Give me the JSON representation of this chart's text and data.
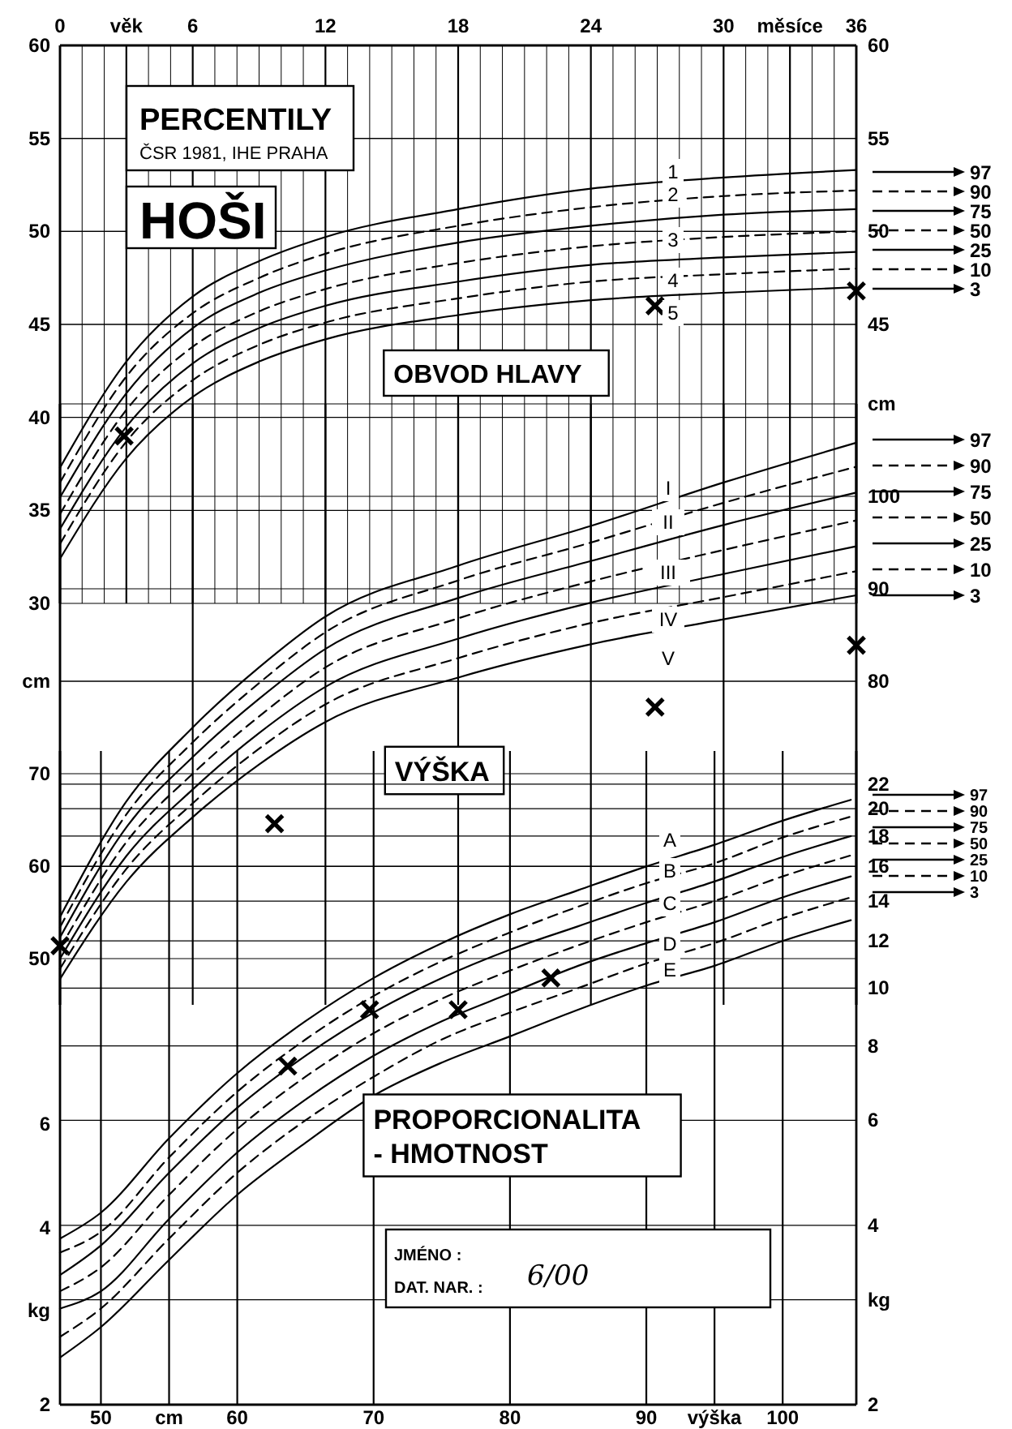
{
  "chart_data": [
    {
      "type": "line",
      "title": "OBVOD HLAVY",
      "x": [
        0,
        3,
        6,
        9,
        12,
        18,
        24,
        30,
        36
      ],
      "xlim": [
        0,
        36
      ],
      "xticks": [
        0,
        {
          "value": 1,
          "label": null
        },
        {
          "value": 2,
          "label": null
        },
        {
          "value": 3,
          "label": "věk"
        },
        {
          "value": 4,
          "label": null
        },
        {
          "value": 5,
          "label": null
        },
        6,
        {
          "value": 7,
          "label": null
        },
        {
          "value": 8,
          "label": null
        },
        {
          "value": 9,
          "label": null
        },
        {
          "value": 10,
          "label": null
        },
        {
          "value": 11,
          "label": null
        },
        12,
        {
          "value": 13,
          "label": null
        },
        {
          "value": 14,
          "label": null
        },
        {
          "value": 15,
          "label": null
        },
        {
          "value": 16,
          "label": null
        },
        {
          "value": 17,
          "label": null
        },
        18,
        {
          "value": 19,
          "label": null
        },
        {
          "value": 20,
          "label": null
        },
        {
          "value": 21,
          "label": null
        },
        {
          "value": 22,
          "label": null
        },
        {
          "value": 23,
          "label": null
        },
        24,
        {
          "value": 25,
          "label": null
        },
        {
          "value": 26,
          "label": null
        },
        {
          "value": 27,
          "label": null
        },
        {
          "value": 28,
          "label": null
        },
        {
          "value": 29,
          "label": null
        },
        30,
        {
          "value": 31,
          "label": null
        },
        {
          "value": 32,
          "label": null
        },
        {
          "value": 33,
          "label": "měsíce"
        },
        {
          "value": 34,
          "label": null
        },
        {
          "value": 35,
          "label": null
        },
        36
      ],
      "ylim": [
        30,
        60
      ],
      "yticks": [
        30,
        35,
        40,
        45,
        50,
        55,
        60
      ],
      "y2lim": [
        30,
        60
      ],
      "y2ticks": [
        45,
        50,
        55,
        60
      ],
      "grid": true,
      "legend": "right",
      "series": [
        {
          "name": "97",
          "color": "#000000",
          "line_style": "solid",
          "values": [
            37.3,
            43.0,
            46.5,
            48.4,
            49.7,
            51.2,
            52.3,
            52.9,
            53.3
          ]
        },
        {
          "name": "90",
          "color": "#000000",
          "line_style": "dashed",
          "values": [
            36.5,
            42.2,
            45.6,
            47.5,
            48.8,
            50.3,
            51.3,
            51.9,
            52.2
          ]
        },
        {
          "name": "75",
          "color": "#000000",
          "line_style": "solid",
          "values": [
            35.7,
            41.3,
            44.8,
            46.7,
            47.9,
            49.4,
            50.3,
            50.9,
            51.2
          ]
        },
        {
          "name": "50",
          "color": "#000000",
          "line_style": "dashed",
          "values": [
            34.8,
            40.4,
            43.8,
            45.7,
            46.9,
            48.3,
            49.2,
            49.7,
            50.0
          ]
        },
        {
          "name": "25",
          "color": "#000000",
          "line_style": "solid",
          "values": [
            34.0,
            39.5,
            42.9,
            44.8,
            46.0,
            47.3,
            48.2,
            48.6,
            48.9
          ]
        },
        {
          "name": "10",
          "color": "#000000",
          "line_style": "dashed",
          "values": [
            33.2,
            38.7,
            42.0,
            43.9,
            45.1,
            46.4,
            47.3,
            47.7,
            48.0
          ]
        },
        {
          "name": "3",
          "color": "#000000",
          "line_style": "solid",
          "values": [
            32.4,
            37.8,
            41.1,
            43.0,
            44.2,
            45.5,
            46.3,
            46.7,
            47.0
          ]
        },
        {
          "type": "scatter",
          "marker": "cross",
          "color": "#000000",
          "x": [
            2.9,
            26.9,
            36
          ],
          "values": [
            39.0,
            46.0,
            46.8
          ]
        }
      ],
      "annotations": [
        "PERCENTILY",
        "ČSR 1981, IHE PRAHA",
        "HOŠI",
        "1",
        "2",
        "3",
        "4",
        "5"
      ]
    },
    {
      "type": "line",
      "title": "VÝŠKA",
      "x": [
        0,
        3,
        6,
        9,
        12,
        18,
        24,
        30,
        36
      ],
      "xlim": [
        0,
        36
      ],
      "xticks": [
        0,
        6,
        12,
        18,
        24,
        30,
        36
      ],
      "tick_labels": "y",
      "ylim": [
        45,
        110
      ],
      "yticks": [
        50,
        60,
        70,
        {
          "value": 80,
          "label": "cm"
        }
      ],
      "y2lim": [
        45,
        110
      ],
      "y2ticks": [
        80,
        90,
        100,
        {
          "value": 110,
          "label": "cm"
        }
      ],
      "grid": true,
      "legend": "right",
      "series": [
        {
          "name": "97",
          "color": "#000000",
          "line_style": "solid",
          "values": [
            54.5,
            67.0,
            75.0,
            81.5,
            87.0,
            92.5,
            96.8,
            101.5,
            105.8
          ]
        },
        {
          "name": "90",
          "color": "#000000",
          "line_style": "dashed",
          "values": [
            53.4,
            65.6,
            73.4,
            79.8,
            85.3,
            90.9,
            95.0,
            99.3,
            103.2
          ]
        },
        {
          "name": "75",
          "color": "#000000",
          "line_style": "solid",
          "values": [
            52.3,
            64.2,
            71.8,
            78.1,
            83.5,
            89.0,
            93.0,
            96.9,
            100.4
          ]
        },
        {
          "name": "50",
          "color": "#000000",
          "line_style": "dashed",
          "values": [
            51.1,
            62.6,
            70.0,
            76.2,
            81.5,
            86.8,
            90.8,
            94.2,
            97.4
          ]
        },
        {
          "name": "25",
          "color": "#000000",
          "line_style": "solid",
          "values": [
            50.0,
            61.1,
            68.3,
            74.4,
            79.4,
            84.6,
            88.5,
            91.6,
            94.6
          ]
        },
        {
          "name": "10",
          "color": "#000000",
          "line_style": "dashed",
          "values": [
            48.9,
            59.7,
            66.8,
            72.7,
            77.5,
            82.5,
            86.3,
            89.1,
            91.9
          ]
        },
        {
          "name": "3",
          "color": "#000000",
          "line_style": "solid",
          "values": [
            47.8,
            58.3,
            65.3,
            71.0,
            75.6,
            80.4,
            84.0,
            86.7,
            89.3
          ]
        },
        {
          "type": "scatter",
          "marker": "cross",
          "color": "#000000",
          "x": [
            0,
            9.7,
            26.9,
            36
          ],
          "values": [
            51.4,
            64.6,
            77.2,
            83.9
          ]
        }
      ],
      "annotations": [
        "I",
        "II",
        "III",
        "IV",
        "V"
      ]
    },
    {
      "type": "line",
      "title": "PROPORCIONALITA - HMOTNOST",
      "x": [
        47,
        50,
        55,
        60,
        65,
        70,
        75,
        80,
        85,
        90,
        95,
        100,
        105
      ],
      "xlim": [
        47,
        105.4
      ],
      "xticks": [
        50,
        {
          "value": 55,
          "label": "cm"
        },
        60,
        70,
        80,
        90,
        {
          "value": 95,
          "label": "výška"
        },
        100
      ],
      "log": true,
      "ylim": [
        2,
        25
      ],
      "yticks": [
        2,
        {
          "value": 3,
          "label": "kg"
        },
        4,
        6,
        8,
        10,
        12,
        14,
        16,
        18,
        20,
        22
      ],
      "grid": true,
      "legend": "right",
      "series": [
        {
          "name": "97",
          "color": "#000000",
          "line_style": "solid",
          "values": [
            3.8,
            4.2,
            5.6,
            7.2,
            8.8,
            10.4,
            11.9,
            13.3,
            14.6,
            16.0,
            17.4,
            19.1,
            20.7
          ]
        },
        {
          "name": "90",
          "color": "#000000",
          "line_style": "dashed",
          "values": [
            3.6,
            3.9,
            5.2,
            6.7,
            8.2,
            9.7,
            11.1,
            12.4,
            13.7,
            15.0,
            16.2,
            17.9,
            19.4
          ]
        },
        {
          "name": "75",
          "color": "#000000",
          "line_style": "solid",
          "values": [
            3.3,
            3.7,
            4.9,
            6.3,
            7.7,
            9.1,
            10.4,
            11.6,
            12.7,
            13.9,
            15.1,
            16.6,
            18.0
          ]
        },
        {
          "name": "50",
          "color": "#000000",
          "line_style": "dashed",
          "values": [
            3.1,
            3.4,
            4.5,
            5.8,
            7.1,
            8.4,
            9.6,
            10.7,
            11.8,
            12.9,
            14.0,
            15.4,
            16.7
          ]
        },
        {
          "name": "25",
          "color": "#000000",
          "line_style": "solid",
          "values": [
            2.9,
            3.1,
            4.1,
            5.3,
            6.5,
            7.7,
            8.8,
            9.8,
            10.9,
            11.9,
            12.9,
            14.2,
            15.4
          ]
        },
        {
          "name": "10",
          "color": "#000000",
          "line_style": "dashed",
          "values": [
            2.6,
            2.9,
            3.8,
            4.9,
            6.0,
            7.1,
            8.2,
            9.1,
            10.0,
            11.0,
            11.9,
            13.1,
            14.2
          ]
        },
        {
          "name": "3",
          "color": "#000000",
          "line_style": "solid",
          "values": [
            2.4,
            2.7,
            3.5,
            4.5,
            5.5,
            6.6,
            7.5,
            8.3,
            9.2,
            10.1,
            10.9,
            12.0,
            13.0
          ]
        },
        {
          "type": "scatter",
          "marker": "cross",
          "color": "#000000",
          "x": [
            63.7,
            69.7,
            76.2,
            83.0
          ],
          "values": [
            7.4,
            9.2,
            9.2,
            10.4
          ]
        }
      ],
      "annotations": [
        "JMÉNO :",
        "DAT. NAR. :",
        "6/00",
        "A",
        "B",
        "C",
        "D",
        "E",
        "2",
        "kg",
        "4",
        "6"
      ]
    }
  ]
}
